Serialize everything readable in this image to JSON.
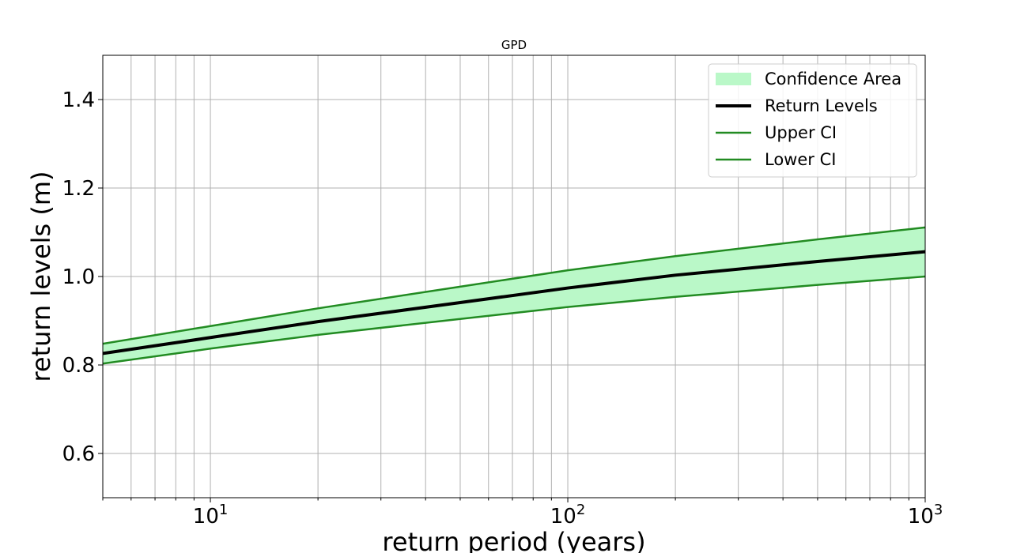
{
  "chart_data": {
    "type": "area",
    "title": "GPD",
    "xlabel": "return period (years)",
    "ylabel": "return levels (m)",
    "xscale": "log",
    "xlim": [
      5,
      1000
    ],
    "ylim": [
      0.5,
      1.5
    ],
    "xticks": [
      {
        "value": 10,
        "base": "10",
        "exp": "1"
      },
      {
        "value": 100,
        "base": "10",
        "exp": "2"
      },
      {
        "value": 1000,
        "base": "10",
        "exp": "3"
      }
    ],
    "yticks": [
      {
        "value": 0.6,
        "label": "0.6"
      },
      {
        "value": 0.8,
        "label": "0.8"
      },
      {
        "value": 1.0,
        "label": "1.0"
      },
      {
        "value": 1.2,
        "label": "1.2"
      },
      {
        "value": 1.4,
        "label": "1.4"
      }
    ],
    "grid": true,
    "legend_position": "top-right",
    "x": [
      5,
      10,
      20,
      50,
      100,
      200,
      500,
      1000
    ],
    "series": [
      {
        "name": "Return Levels",
        "role": "central",
        "color": "#000000",
        "values": [
          0.826,
          0.862,
          0.898,
          0.941,
          0.974,
          1.003,
          1.034,
          1.056
        ]
      },
      {
        "name": "Upper CI",
        "role": "upper",
        "color": "#228b22",
        "values": [
          0.848,
          0.888,
          0.928,
          0.977,
          1.014,
          1.046,
          1.084,
          1.111
        ]
      },
      {
        "name": "Lower CI",
        "role": "lower",
        "color": "#228b22",
        "values": [
          0.803,
          0.837,
          0.868,
          0.904,
          0.931,
          0.954,
          0.981,
          1.0
        ]
      }
    ],
    "confidence_area": {
      "name": "Confidence Area",
      "color": "#baf8c8"
    },
    "legend": [
      "Confidence Area",
      "Return Levels",
      "Upper CI",
      "Lower CI"
    ]
  }
}
